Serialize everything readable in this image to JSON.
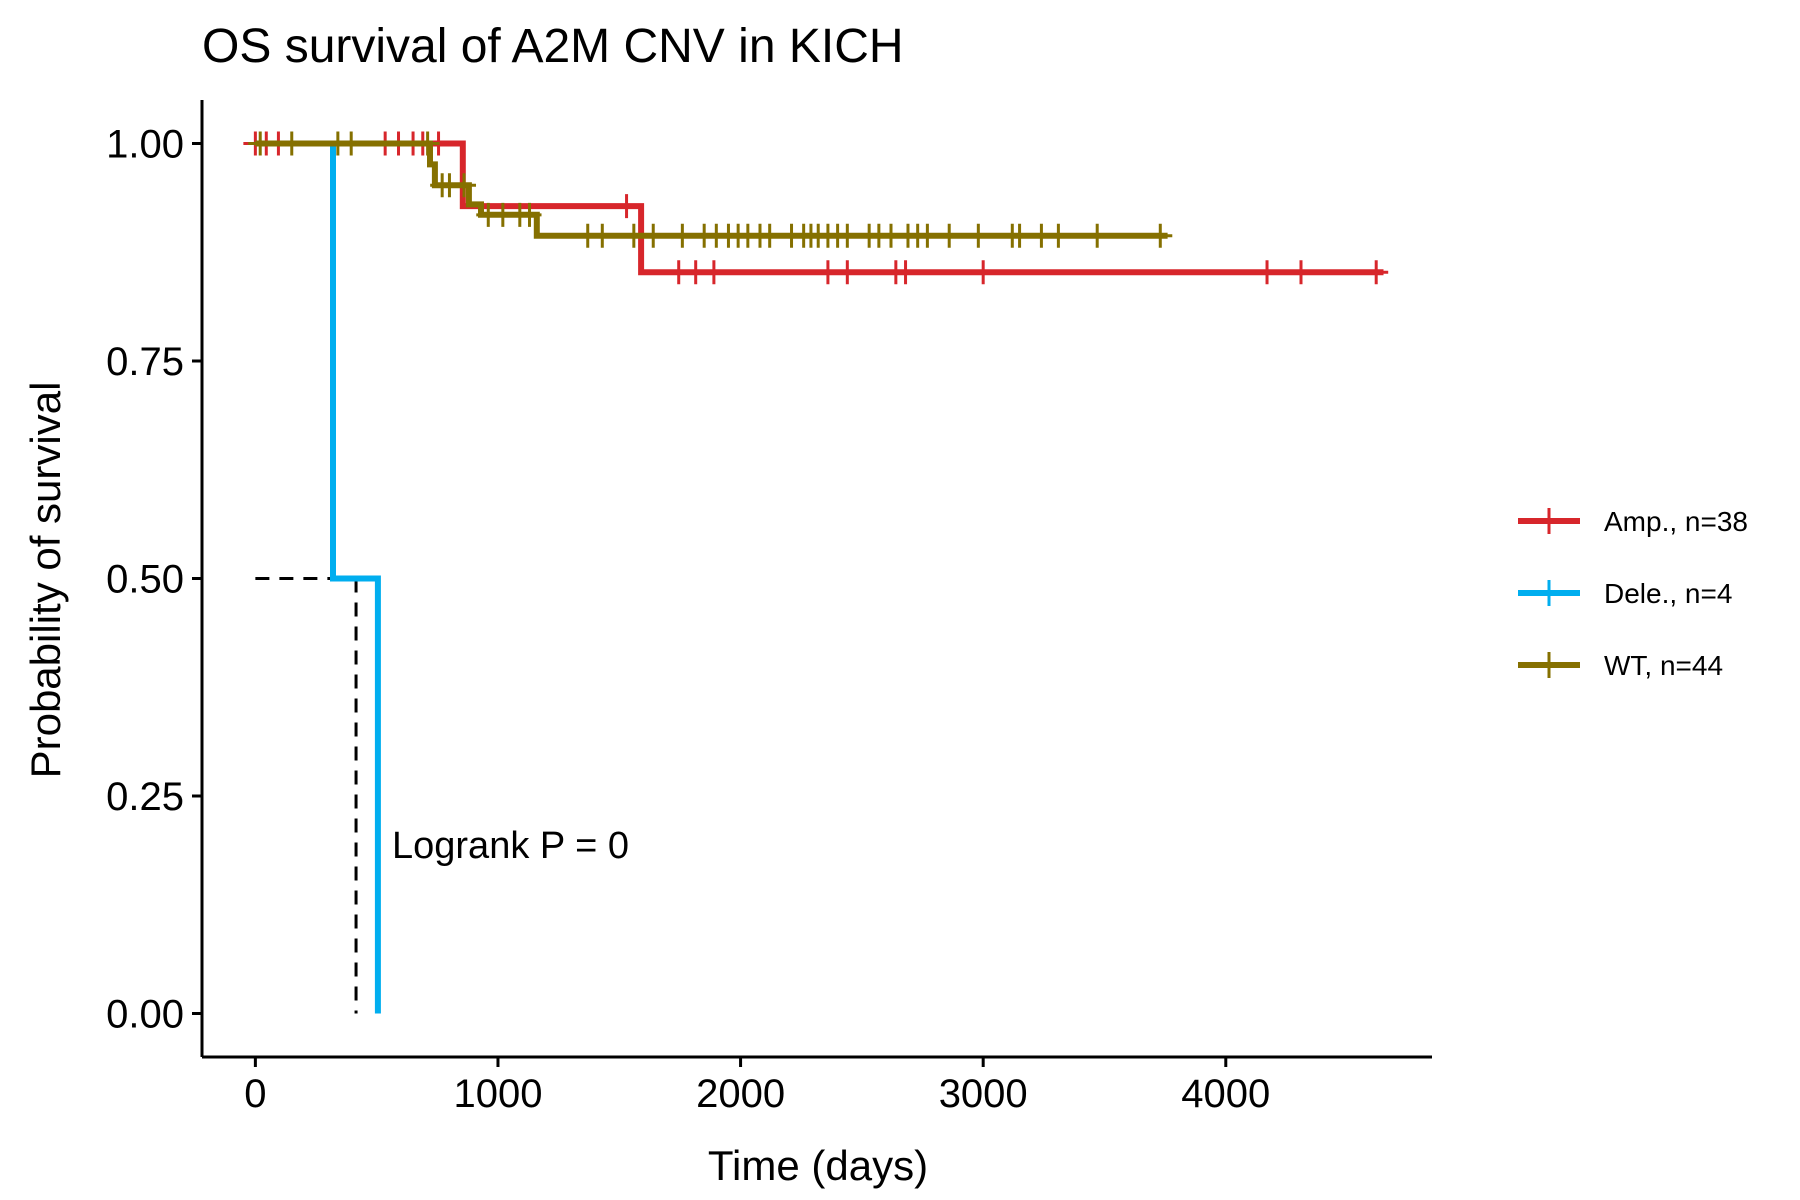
{
  "chart_data": {
    "type": "line",
    "subtype": "kaplan-meier",
    "title": "OS survival of A2M CNV in KICH",
    "xlabel": "Time (days)",
    "ylabel": "Probability of survival",
    "xlim": [
      -220,
      4850
    ],
    "ylim": [
      -0.05,
      1.05
    ],
    "x_ticks": [
      0,
      1000,
      2000,
      3000,
      4000
    ],
    "x_tick_labels": [
      "0",
      "1000",
      "2000",
      "3000",
      "4000"
    ],
    "y_ticks": [
      0,
      0.25,
      0.5,
      0.75,
      1.0
    ],
    "y_tick_labels": [
      "0.00",
      "0.25",
      "0.50",
      "0.75",
      "1.00"
    ],
    "grid": false,
    "legend_position": "right",
    "annotation": "Logrank P = 0",
    "annotation_pos": {
      "x": 560,
      "y": 0.195
    },
    "median_line": {
      "x": 415,
      "y": 0.5
    },
    "series": [
      {
        "name": "Amp., n=38",
        "color": "#D7262B",
        "steps": [
          [
            0,
            1.0
          ],
          [
            855,
            1.0
          ],
          [
            855,
            0.928
          ],
          [
            1590,
            0.928
          ],
          [
            1590,
            0.852
          ],
          [
            4650,
            0.852
          ]
        ],
        "censor": [
          [
            0,
            1.0
          ],
          [
            45,
            1.0
          ],
          [
            95,
            1.0
          ],
          [
            535,
            1.0
          ],
          [
            590,
            1.0
          ],
          [
            650,
            1.0
          ],
          [
            690,
            1.0
          ],
          [
            755,
            1.0
          ],
          [
            1530,
            0.928
          ],
          [
            1745,
            0.852
          ],
          [
            1815,
            0.852
          ],
          [
            1890,
            0.852
          ],
          [
            2360,
            0.852
          ],
          [
            2440,
            0.852
          ],
          [
            2640,
            0.852
          ],
          [
            2680,
            0.852
          ],
          [
            3000,
            0.852
          ],
          [
            4170,
            0.852
          ],
          [
            4310,
            0.852
          ],
          [
            4620,
            0.852
          ]
        ]
      },
      {
        "name": "Dele., n=4",
        "color": "#00AEEF",
        "steps": [
          [
            0,
            1.0
          ],
          [
            320,
            1.0
          ],
          [
            320,
            0.5
          ],
          [
            505,
            0.5
          ],
          [
            505,
            0.0
          ]
        ],
        "censor": []
      },
      {
        "name": "WT, n=44",
        "color": "#857000",
        "steps": [
          [
            0,
            1.0
          ],
          [
            720,
            1.0
          ],
          [
            720,
            0.976
          ],
          [
            740,
            0.976
          ],
          [
            740,
            0.952
          ],
          [
            880,
            0.952
          ],
          [
            880,
            0.93
          ],
          [
            930,
            0.93
          ],
          [
            930,
            0.918
          ],
          [
            1160,
            0.918
          ],
          [
            1160,
            0.894
          ],
          [
            3760,
            0.894
          ]
        ],
        "censor": [
          [
            20,
            1.0
          ],
          [
            150,
            1.0
          ],
          [
            340,
            1.0
          ],
          [
            395,
            1.0
          ],
          [
            710,
            1.0
          ],
          [
            770,
            0.952
          ],
          [
            800,
            0.952
          ],
          [
            860,
            0.952
          ],
          [
            960,
            0.918
          ],
          [
            1020,
            0.918
          ],
          [
            1090,
            0.918
          ],
          [
            1130,
            0.918
          ],
          [
            1370,
            0.894
          ],
          [
            1430,
            0.894
          ],
          [
            1560,
            0.894
          ],
          [
            1640,
            0.894
          ],
          [
            1760,
            0.894
          ],
          [
            1850,
            0.894
          ],
          [
            1900,
            0.894
          ],
          [
            1950,
            0.894
          ],
          [
            1990,
            0.894
          ],
          [
            2030,
            0.894
          ],
          [
            2080,
            0.894
          ],
          [
            2120,
            0.894
          ],
          [
            2210,
            0.894
          ],
          [
            2260,
            0.894
          ],
          [
            2290,
            0.894
          ],
          [
            2320,
            0.894
          ],
          [
            2360,
            0.894
          ],
          [
            2400,
            0.894
          ],
          [
            2440,
            0.894
          ],
          [
            2530,
            0.894
          ],
          [
            2570,
            0.894
          ],
          [
            2620,
            0.894
          ],
          [
            2690,
            0.894
          ],
          [
            2730,
            0.894
          ],
          [
            2770,
            0.894
          ],
          [
            2860,
            0.894
          ],
          [
            2980,
            0.894
          ],
          [
            3120,
            0.894
          ],
          [
            3150,
            0.894
          ],
          [
            3240,
            0.894
          ],
          [
            3310,
            0.894
          ],
          [
            3470,
            0.894
          ],
          [
            3730,
            0.894
          ]
        ]
      }
    ]
  }
}
